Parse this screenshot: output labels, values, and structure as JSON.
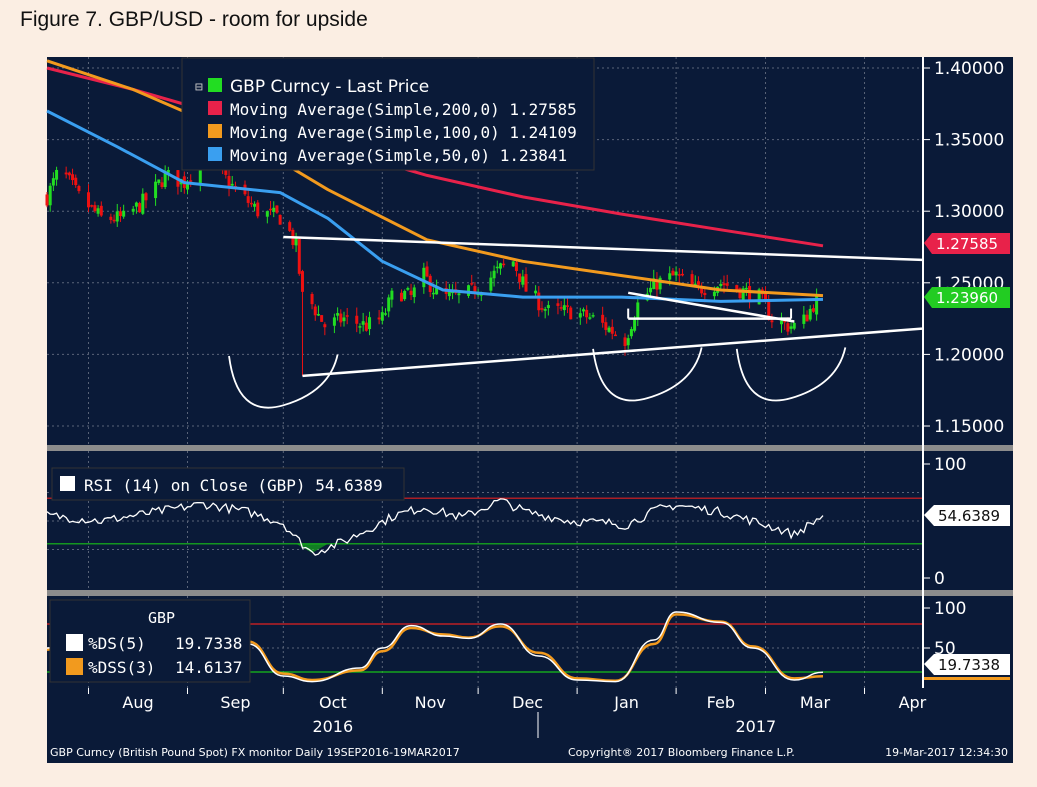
{
  "figure_title": "Figure 7. GBP/USD - room for upside",
  "footer": {
    "left": "GBP Curncy (British Pound Spot) FX monitor  Daily 19SEP2016-19MAR2017",
    "center": "Copyright® 2017 Bloomberg Finance L.P.",
    "right": "19-Mar-2017 12:34:30"
  },
  "colors": {
    "background": "#0a1a38",
    "candle_up": "#22dd22",
    "candle_down": "#ee1111",
    "ma200": "#e8224a",
    "ma100": "#f29a1e",
    "ma50": "#3a9ff0",
    "trendline": "#ffffff",
    "reference_line_high": "#e02020",
    "reference_line_low": "#18c018",
    "stoch_k": "#ffffff",
    "stoch_d": "#f29a1e"
  },
  "price_panel": {
    "legend": {
      "last_price": "GBP Curncy - Last Price",
      "ma200": "Moving Average(Simple,200,0) 1.27585",
      "ma100": "Moving Average(Simple,100,0)  1.24109",
      "ma50": "Moving Average(Simple,50,0)   1.23841"
    },
    "tags": {
      "ma200": "1.27585",
      "last": "1.23960"
    }
  },
  "rsi_panel": {
    "legend": "RSI (14) on Close (GBP) 54.6389",
    "tag": "54.6389"
  },
  "stoch_panel": {
    "header": "GBP",
    "k_label": "%DS(5)",
    "k_value": "19.7338",
    "d_label": "%DSS(3)",
    "d_value": "14.6137",
    "tag": "19.7338"
  },
  "chart_data": [
    {
      "type": "candlestick",
      "title": "GBP Curncy - Last Price",
      "x_range": [
        "2016-07-19",
        "2017-04-19"
      ],
      "ylim": [
        1.13,
        1.41
      ],
      "y_ticks": [
        "1.40000",
        "1.35000",
        "1.30000",
        "1.25000",
        "1.20000",
        "1.15000"
      ],
      "x_ticks": [
        "Aug",
        "Sep",
        "Oct",
        "Nov",
        "Dec",
        "Jan",
        "Feb",
        "Mar",
        "Apr"
      ],
      "year_labels": [
        "2016",
        "2017"
      ],
      "close_anchors": [
        {
          "date": "2016-07-19",
          "close": 1.31
        },
        {
          "date": "2016-07-23",
          "close": 1.33
        },
        {
          "date": "2016-07-29",
          "close": 1.31
        },
        {
          "date": "2016-08-05",
          "close": 1.295
        },
        {
          "date": "2016-08-12",
          "close": 1.295
        },
        {
          "date": "2016-08-20",
          "close": 1.31
        },
        {
          "date": "2016-08-25",
          "close": 1.325
        },
        {
          "date": "2016-08-31",
          "close": 1.32
        },
        {
          "date": "2016-09-06",
          "close": 1.34
        },
        {
          "date": "2016-09-10",
          "close": 1.33
        },
        {
          "date": "2016-09-16",
          "close": 1.315
        },
        {
          "date": "2016-09-23",
          "close": 1.3
        },
        {
          "date": "2016-10-01",
          "close": 1.295
        },
        {
          "date": "2016-10-05",
          "close": 1.275
        },
        {
          "date": "2016-10-07",
          "close": 1.24
        },
        {
          "date": "2016-10-10",
          "close": 1.235
        },
        {
          "date": "2016-10-14",
          "close": 1.22
        },
        {
          "date": "2016-10-20",
          "close": 1.225
        },
        {
          "date": "2016-10-27",
          "close": 1.22
        },
        {
          "date": "2016-11-01",
          "close": 1.225
        },
        {
          "date": "2016-11-05",
          "close": 1.245
        },
        {
          "date": "2016-11-10",
          "close": 1.24
        },
        {
          "date": "2016-11-14",
          "close": 1.255
        },
        {
          "date": "2016-11-19",
          "close": 1.24
        },
        {
          "date": "2016-11-26",
          "close": 1.24
        },
        {
          "date": "2016-12-03",
          "close": 1.25
        },
        {
          "date": "2016-12-08",
          "close": 1.26
        },
        {
          "date": "2016-12-12",
          "close": 1.265
        },
        {
          "date": "2016-12-16",
          "close": 1.245
        },
        {
          "date": "2016-12-23",
          "close": 1.23
        },
        {
          "date": "2016-12-30",
          "close": 1.23
        },
        {
          "date": "2017-01-06",
          "close": 1.225
        },
        {
          "date": "2017-01-13",
          "close": 1.215
        },
        {
          "date": "2017-01-16",
          "close": 1.21
        },
        {
          "date": "2017-01-20",
          "close": 1.235
        },
        {
          "date": "2017-01-26",
          "close": 1.25
        },
        {
          "date": "2017-02-01",
          "close": 1.255
        },
        {
          "date": "2017-02-07",
          "close": 1.245
        },
        {
          "date": "2017-02-15",
          "close": 1.25
        },
        {
          "date": "2017-02-21",
          "close": 1.245
        },
        {
          "date": "2017-02-27",
          "close": 1.24
        },
        {
          "date": "2017-03-03",
          "close": 1.225
        },
        {
          "date": "2017-03-08",
          "close": 1.22
        },
        {
          "date": "2017-03-12",
          "close": 1.22
        },
        {
          "date": "2017-03-16",
          "close": 1.235
        },
        {
          "date": "2017-03-19",
          "close": 1.2396
        }
      ],
      "series": [
        {
          "name": "Moving Average(Simple,200,0)",
          "points": [
            {
              "date": "2016-07-19",
              "value": 1.4
            },
            {
              "date": "2016-08-15",
              "value": 1.385
            },
            {
              "date": "2016-09-15",
              "value": 1.365
            },
            {
              "date": "2016-10-15",
              "value": 1.345
            },
            {
              "date": "2016-11-15",
              "value": 1.325
            },
            {
              "date": "2016-12-15",
              "value": 1.31
            },
            {
              "date": "2017-01-15",
              "value": 1.298
            },
            {
              "date": "2017-02-15",
              "value": 1.287
            },
            {
              "date": "2017-03-19",
              "value": 1.27585
            }
          ]
        },
        {
          "name": "Moving Average(Simple,100,0)",
          "points": [
            {
              "date": "2016-07-19",
              "value": 1.405
            },
            {
              "date": "2016-08-15",
              "value": 1.385
            },
            {
              "date": "2016-09-15",
              "value": 1.355
            },
            {
              "date": "2016-10-15",
              "value": 1.315
            },
            {
              "date": "2016-11-15",
              "value": 1.28
            },
            {
              "date": "2016-12-15",
              "value": 1.265
            },
            {
              "date": "2017-01-15",
              "value": 1.255
            },
            {
              "date": "2017-02-15",
              "value": 1.245
            },
            {
              "date": "2017-03-19",
              "value": 1.24109
            }
          ]
        },
        {
          "name": "Moving Average(Simple,50,0)",
          "points": [
            {
              "date": "2016-07-19",
              "value": 1.37
            },
            {
              "date": "2016-08-10",
              "value": 1.345
            },
            {
              "date": "2016-08-31",
              "value": 1.32
            },
            {
              "date": "2016-09-30",
              "value": 1.313
            },
            {
              "date": "2016-10-15",
              "value": 1.295
            },
            {
              "date": "2016-11-01",
              "value": 1.265
            },
            {
              "date": "2016-11-20",
              "value": 1.245
            },
            {
              "date": "2016-12-15",
              "value": 1.24
            },
            {
              "date": "2017-01-15",
              "value": 1.24
            },
            {
              "date": "2017-02-15",
              "value": 1.237
            },
            {
              "date": "2017-03-19",
              "value": 1.23841
            }
          ]
        }
      ],
      "trendlines": [
        {
          "from": {
            "date": "2016-10-01",
            "value": 1.282
          },
          "to": {
            "date": "2017-04-19",
            "value": 1.266
          }
        },
        {
          "from": {
            "date": "2016-10-07",
            "value": 1.185
          },
          "to": {
            "date": "2017-04-19",
            "value": 1.218
          }
        },
        {
          "from": {
            "date": "2017-01-17",
            "value": 1.243
          },
          "to": {
            "date": "2017-03-10",
            "value": 1.223
          }
        },
        {
          "from": {
            "date": "2017-01-17",
            "value": 1.225
          },
          "to": {
            "date": "2017-03-09",
            "value": 1.225
          }
        }
      ]
    },
    {
      "type": "line",
      "title": "RSI (14) on Close (GBP)",
      "ylim": [
        0,
        100
      ],
      "y_ticks": [
        "100",
        "0"
      ],
      "reference_lines": [
        70,
        30
      ],
      "series": [
        {
          "name": "RSI (14) on Close (GBP)",
          "points": [
            {
              "date": "2016-07-19",
              "value": 55
            },
            {
              "date": "2016-08-05",
              "value": 50
            },
            {
              "date": "2016-08-20",
              "value": 57
            },
            {
              "date": "2016-09-06",
              "value": 65
            },
            {
              "date": "2016-09-20",
              "value": 58
            },
            {
              "date": "2016-10-01",
              "value": 48
            },
            {
              "date": "2016-10-05",
              "value": 35
            },
            {
              "date": "2016-10-10",
              "value": 22
            },
            {
              "date": "2016-10-20",
              "value": 32
            },
            {
              "date": "2016-11-05",
              "value": 55
            },
            {
              "date": "2016-11-14",
              "value": 62
            },
            {
              "date": "2016-11-26",
              "value": 53
            },
            {
              "date": "2016-12-08",
              "value": 68
            },
            {
              "date": "2016-12-16",
              "value": 58
            },
            {
              "date": "2016-12-30",
              "value": 50
            },
            {
              "date": "2017-01-13",
              "value": 48
            },
            {
              "date": "2017-01-16",
              "value": 46
            },
            {
              "date": "2017-01-26",
              "value": 60
            },
            {
              "date": "2017-02-01",
              "value": 64
            },
            {
              "date": "2017-02-15",
              "value": 58
            },
            {
              "date": "2017-03-03",
              "value": 45
            },
            {
              "date": "2017-03-10",
              "value": 38
            },
            {
              "date": "2017-03-19",
              "value": 54.6389
            }
          ]
        }
      ]
    },
    {
      "type": "line",
      "title": "GBP",
      "ylim": [
        0,
        110
      ],
      "y_ticks": [
        "100",
        "50"
      ],
      "reference_lines": [
        80,
        20
      ],
      "series": [
        {
          "name": "%DS(5)",
          "points": [
            {
              "date": "2016-07-19",
              "value": 50
            },
            {
              "date": "2016-08-05",
              "value": 70
            },
            {
              "date": "2016-08-20",
              "value": 55
            },
            {
              "date": "2016-09-05",
              "value": 75
            },
            {
              "date": "2016-09-10",
              "value": 85
            },
            {
              "date": "2016-09-20",
              "value": 55
            },
            {
              "date": "2016-10-01",
              "value": 15
            },
            {
              "date": "2016-10-10",
              "value": 8
            },
            {
              "date": "2016-10-25",
              "value": 25
            },
            {
              "date": "2016-11-01",
              "value": 50
            },
            {
              "date": "2016-11-10",
              "value": 78
            },
            {
              "date": "2016-11-20",
              "value": 65
            },
            {
              "date": "2016-11-28",
              "value": 62
            },
            {
              "date": "2016-12-08",
              "value": 80
            },
            {
              "date": "2016-12-20",
              "value": 40
            },
            {
              "date": "2017-01-01",
              "value": 10
            },
            {
              "date": "2017-01-13",
              "value": 8
            },
            {
              "date": "2017-01-25",
              "value": 60
            },
            {
              "date": "2017-02-01",
              "value": 95
            },
            {
              "date": "2017-02-15",
              "value": 82
            },
            {
              "date": "2017-02-25",
              "value": 50
            },
            {
              "date": "2017-03-10",
              "value": 10
            },
            {
              "date": "2017-03-19",
              "value": 19.7338
            }
          ]
        },
        {
          "name": "%DSS(3)",
          "points": [
            {
              "date": "2016-07-19",
              "value": 48
            },
            {
              "date": "2016-08-05",
              "value": 66
            },
            {
              "date": "2016-08-20",
              "value": 57
            },
            {
              "date": "2016-09-05",
              "value": 72
            },
            {
              "date": "2016-09-10",
              "value": 82
            },
            {
              "date": "2016-09-20",
              "value": 58
            },
            {
              "date": "2016-10-01",
              "value": 18
            },
            {
              "date": "2016-10-10",
              "value": 10
            },
            {
              "date": "2016-10-25",
              "value": 22
            },
            {
              "date": "2016-11-01",
              "value": 46
            },
            {
              "date": "2016-11-10",
              "value": 75
            },
            {
              "date": "2016-11-20",
              "value": 67
            },
            {
              "date": "2016-11-28",
              "value": 63
            },
            {
              "date": "2016-12-08",
              "value": 77
            },
            {
              "date": "2016-12-20",
              "value": 44
            },
            {
              "date": "2017-01-01",
              "value": 12
            },
            {
              "date": "2017-01-13",
              "value": 9
            },
            {
              "date": "2017-01-25",
              "value": 55
            },
            {
              "date": "2017-02-01",
              "value": 92
            },
            {
              "date": "2017-02-15",
              "value": 83
            },
            {
              "date": "2017-02-25",
              "value": 52
            },
            {
              "date": "2017-03-10",
              "value": 12
            },
            {
              "date": "2017-03-19",
              "value": 14.6137
            }
          ]
        }
      ]
    }
  ]
}
